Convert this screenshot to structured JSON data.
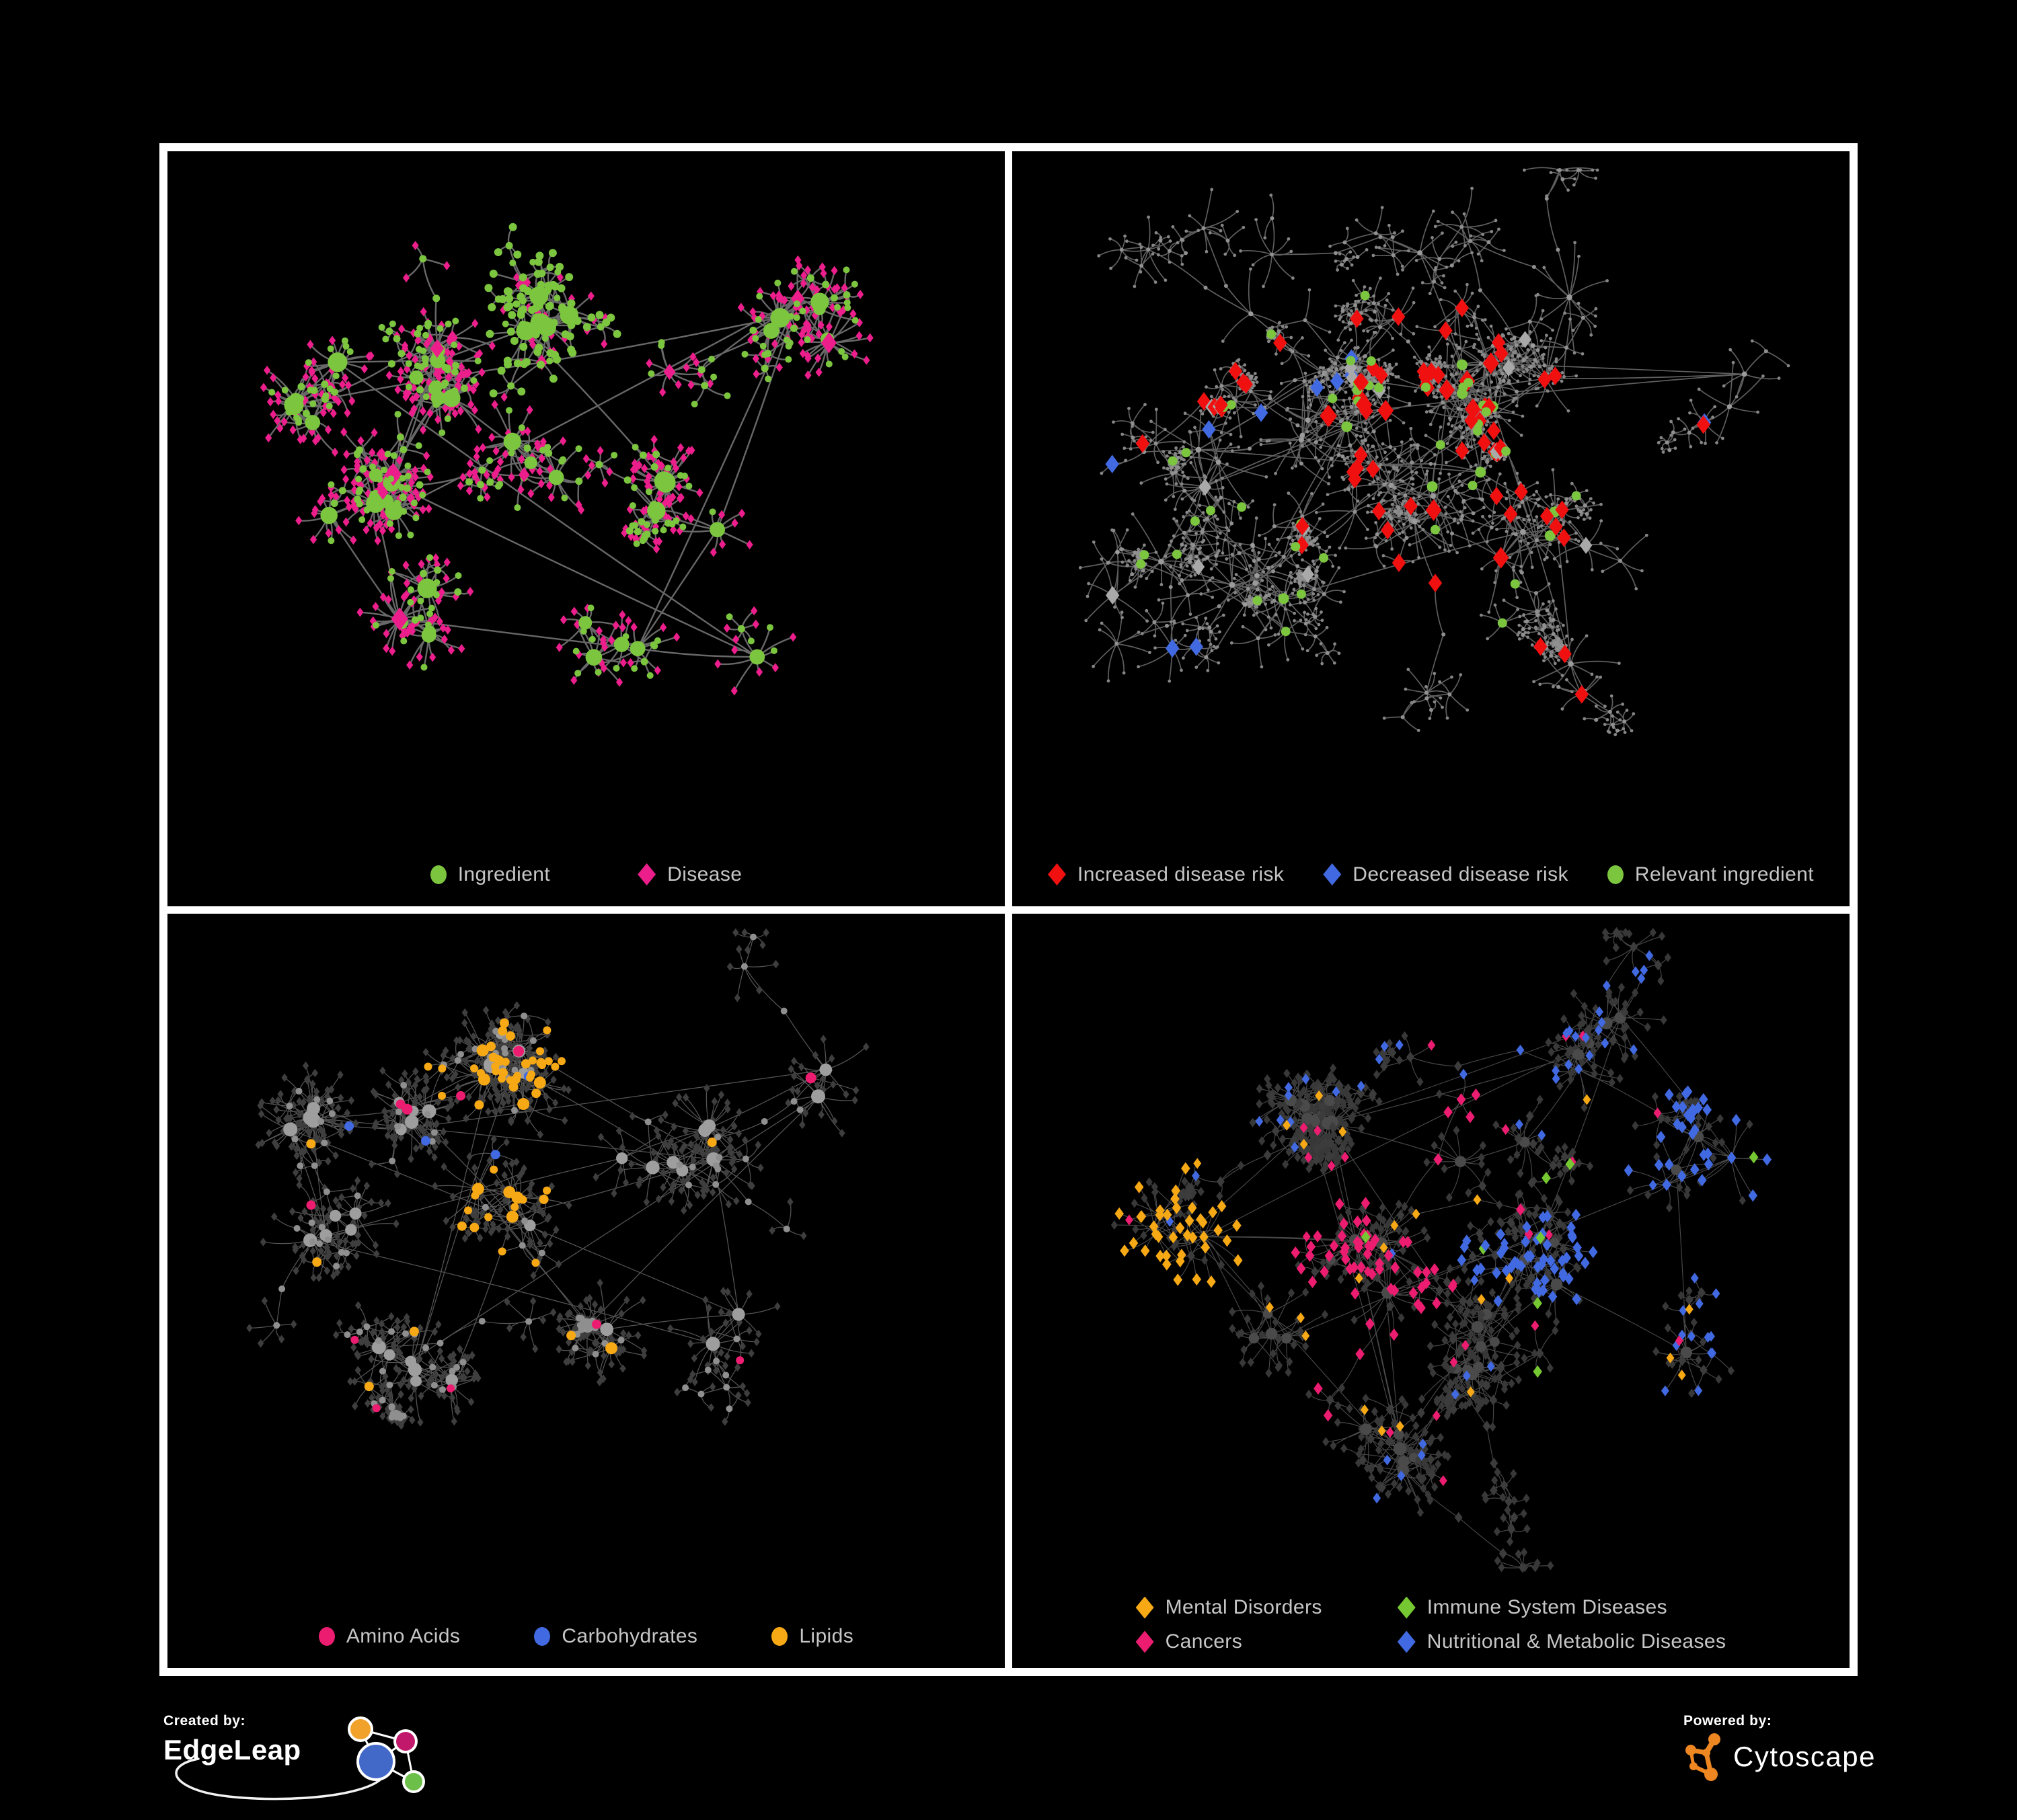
{
  "frame": {
    "border_color": "#ffffff",
    "background": "#000000"
  },
  "branding": {
    "created": {
      "label": "Created by:",
      "name": "EdgeLeap"
    },
    "powered": {
      "label": "Powered by:",
      "name": "Cytoscape",
      "logo_color": "#ee8722"
    }
  },
  "palette": {
    "green": "#7cc63f",
    "magenta": "#ec1e8c",
    "red": "#f01010",
    "blue": "#4169e1",
    "gray_diamond": "#a9a9a9",
    "amber": "#f7a915",
    "pink": "#ec1d70",
    "leaf_gray": "#8a8a8a",
    "dark_diamond": "#3c3c3c"
  },
  "panels": [
    {
      "name": "ingredient-disease-network",
      "legend": {
        "items": [
          {
            "shape": "circle",
            "color": "#7cc63f",
            "label": "Ingredient"
          },
          {
            "shape": "diamond",
            "color": "#ec1e8c",
            "label": "Disease"
          }
        ]
      },
      "network": {
        "seed": 7,
        "hubs": 55,
        "leafMin": 5,
        "leafMax": 18,
        "dMin": 22,
        "dMax": 62,
        "subP": 0.08,
        "chainP": 0.1,
        "spread": 62,
        "bottom_margin": 130,
        "centers": [
          [
            0.3,
            0.3
          ],
          [
            0.44,
            0.24
          ],
          [
            0.24,
            0.48
          ],
          [
            0.42,
            0.46
          ],
          [
            0.58,
            0.28
          ],
          [
            0.64,
            0.5
          ],
          [
            0.3,
            0.7
          ],
          [
            0.52,
            0.72
          ],
          [
            0.76,
            0.22
          ],
          [
            0.7,
            0.68
          ],
          [
            0.14,
            0.35
          ]
        ],
        "weights": [
          2.4,
          2.0,
          1.6,
          2.0,
          1.5,
          1.5,
          1.3,
          1.3,
          1.3,
          1.0,
          0.9
        ],
        "edge": {
          "color": "#6e6e6e",
          "width": 2.4,
          "opacity": 0.95
        },
        "base": {
          "hub": {
            "shape": "circle",
            "color": "#7cc63f",
            "rMin": 6,
            "rMax": 15
          },
          "branch": {
            "shape": "circle",
            "color": "#7cc63f",
            "r": 5.5
          },
          "leaf": {
            "shape": "diamond",
            "color": "#ec1e8c",
            "r": 6
          }
        },
        "recolor": [
          {
            "role": "leaf",
            "clusters": [
              1
            ],
            "prob": 0.7,
            "style": {
              "shape": "circle",
              "color": "#7cc63f",
              "r": 6
            }
          },
          {
            "role": "hub",
            "prob": 0.2,
            "style": {
              "shape": "diamond",
              "color": "#ec1e8c"
            }
          },
          {
            "role": "leaf",
            "prob": 0.24,
            "style": {
              "shape": "circle",
              "color": "#7cc63f",
              "r": 5
            }
          }
        ]
      }
    },
    {
      "name": "disease-risk-network",
      "legend": {
        "items": [
          {
            "shape": "diamond",
            "color": "#f01010",
            "label": "Increased disease risk"
          },
          {
            "shape": "diamond",
            "color": "#4169e1",
            "label": "Decreased disease risk"
          },
          {
            "shape": "circle",
            "color": "#7cc63f",
            "label": "Relevant ingredient"
          }
        ]
      },
      "network": {
        "seed": 13,
        "hubs": 50,
        "leafMin": 3,
        "leafMax": 10,
        "dMin": 32,
        "dMax": 85,
        "subP": 0.2,
        "chainP": 0.38,
        "spread": 66,
        "bottom_margin": 130,
        "centers": [
          [
            0.25,
            0.44
          ],
          [
            0.38,
            0.38
          ],
          [
            0.47,
            0.52
          ],
          [
            0.55,
            0.33
          ],
          [
            0.62,
            0.55
          ],
          [
            0.3,
            0.62
          ],
          [
            0.52,
            0.15
          ],
          [
            0.7,
            0.25
          ],
          [
            0.2,
            0.2
          ],
          [
            0.88,
            0.35
          ],
          [
            0.68,
            0.75
          ],
          [
            0.15,
            0.6
          ]
        ],
        "weights": [
          1.6,
          2.2,
          1.8,
          1.8,
          1.6,
          1.2,
          1.0,
          1.0,
          1.0,
          0.7,
          0.9,
          0.8
        ],
        "edge": {
          "color": "#6f6f6f",
          "width": 1.7,
          "opacity": 0.85
        },
        "base": {
          "hub": {
            "shape": "circle",
            "color": "#9b9b9b",
            "rMin": 3,
            "rMax": 5
          },
          "branch": {
            "shape": "circle",
            "color": "#909090",
            "r": 3
          },
          "leaf": {
            "shape": "circle",
            "color": "#868686",
            "r": 2.4
          }
        },
        "recolor": [
          {
            "role": "hub",
            "clusters": [
              0
            ],
            "prob": 0.45,
            "style": {
              "shape": "diamond",
              "color": "#4169e1",
              "r": 13
            }
          },
          {
            "role": "branch",
            "clusters": [
              0,
              9
            ],
            "prob": 0.22,
            "style": {
              "shape": "diamond",
              "color": "#4169e1",
              "r": 12
            }
          },
          {
            "role": "hub",
            "clusters": [
              1,
              2,
              3,
              4
            ],
            "prob": 0.4,
            "style": {
              "shape": "diamond",
              "color": "#f01010",
              "r": 14
            }
          },
          {
            "role": "branch",
            "clusters": [
              1,
              2,
              3,
              4,
              9,
              10
            ],
            "prob": 0.14,
            "style": {
              "shape": "diamond",
              "color": "#f01010",
              "r": 12
            }
          },
          {
            "role": "hub",
            "clusters": [
              0,
              1,
              2,
              3,
              4,
              5
            ],
            "prob": 0.45,
            "style": {
              "shape": "circle",
              "color": "#7cc63f",
              "r": 8
            }
          },
          {
            "role": "branch",
            "clusters": [
              1,
              2,
              3,
              4,
              5
            ],
            "prob": 0.1,
            "style": {
              "shape": "circle",
              "color": "#7cc63f",
              "r": 7
            }
          },
          {
            "role": "hub",
            "prob": 0.07,
            "style": {
              "shape": "diamond",
              "color": "#a9a9a9",
              "r": 12
            }
          },
          {
            "role": "branch",
            "prob": 0.03,
            "style": {
              "shape": "diamond",
              "color": "#a9a9a9",
              "r": 11
            }
          }
        ]
      }
    },
    {
      "name": "nutrient-class-network",
      "legend": {
        "items": [
          {
            "shape": "circle",
            "color": "#ec1d70",
            "label": "Amino Acids"
          },
          {
            "shape": "circle",
            "color": "#4169e1",
            "label": "Carbohydrates"
          },
          {
            "shape": "circle",
            "color": "#f7a915",
            "label": "Lipids"
          }
        ]
      },
      "network": {
        "seed": 23,
        "hubs": 52,
        "leafMin": 4,
        "leafMax": 14,
        "dMin": 26,
        "dMax": 70,
        "subP": 0.12,
        "chainP": 0.18,
        "spread": 62,
        "bottom_margin": 135,
        "centers": [
          [
            0.3,
            0.3
          ],
          [
            0.4,
            0.2
          ],
          [
            0.2,
            0.45
          ],
          [
            0.42,
            0.42
          ],
          [
            0.6,
            0.33
          ],
          [
            0.5,
            0.62
          ],
          [
            0.28,
            0.68
          ],
          [
            0.68,
            0.6
          ],
          [
            0.78,
            0.25
          ],
          [
            0.15,
            0.3
          ]
        ],
        "weights": [
          2.2,
          1.8,
          1.5,
          2.0,
          1.4,
          1.4,
          1.2,
          1.2,
          0.9,
          1.0
        ],
        "edge": {
          "color": "#9a9a9a",
          "width": 1.25,
          "opacity": 0.55
        },
        "base": {
          "hub": {
            "shape": "circle",
            "color": "#9e9e9e",
            "rMin": 6,
            "rMax": 12
          },
          "branch": {
            "shape": "circle",
            "color": "#8f8f8f",
            "r": 5
          },
          "leaf": {
            "shape": "diamond",
            "color": "#3e3e3e",
            "r": 5.5
          }
        },
        "recolor": [
          {
            "role": "hub",
            "clusters": [
              1,
              3
            ],
            "prob": 0.5,
            "style": {
              "shape": "circle",
              "color": "#f7a915",
              "r": 9
            }
          },
          {
            "role": "branch",
            "clusters": [
              1,
              3
            ],
            "prob": 0.4,
            "style": {
              "shape": "circle",
              "color": "#f7a915",
              "r": 7
            }
          },
          {
            "role": "leaf",
            "clusters": [
              1,
              3
            ],
            "prob": 0.1,
            "style": {
              "shape": "circle",
              "color": "#f7a915",
              "r": 6
            }
          },
          {
            "role": "branch",
            "clusters": [
              0,
              3
            ],
            "prob": 0.15,
            "style": {
              "shape": "circle",
              "color": "#4169e1",
              "r": 7
            }
          },
          {
            "role": "hub",
            "clusters": [
              5
            ],
            "prob": 0.3,
            "style": {
              "shape": "circle",
              "color": "#f7a915",
              "r": 9
            }
          },
          {
            "role": "hub",
            "prob": 0.09,
            "style": {
              "shape": "circle",
              "color": "#ec1d70",
              "r": 8
            }
          },
          {
            "role": "branch",
            "prob": 0.06,
            "style": {
              "shape": "circle",
              "color": "#ec1d70",
              "r": 7
            }
          },
          {
            "role": "branch",
            "prob": 0.05,
            "style": {
              "shape": "circle",
              "color": "#f7a915",
              "r": 7
            }
          },
          {
            "role": "leaf",
            "clusters": [
              6,
              7
            ],
            "prob": 0.03,
            "style": {
              "shape": "circle",
              "color": "#ec1d70",
              "r": 6
            }
          },
          {
            "role": "branch",
            "clusters": [
              8
            ],
            "prob": 0.06,
            "style": {
              "shape": "circle",
              "color": "#4169e1",
              "r": 7
            }
          }
        ]
      }
    },
    {
      "name": "disease-category-network",
      "legend": {
        "items": [
          {
            "shape": "diamond",
            "color": "#f7a915",
            "label": "Mental Disorders"
          },
          {
            "shape": "diamond",
            "color": "#76c832",
            "label": "Immune System Diseases"
          },
          {
            "shape": "diamond",
            "color": "#ec1d70",
            "label": "Cancers"
          },
          {
            "shape": "diamond",
            "color": "#4169e1",
            "label": "Nutritional & Metabolic Diseases"
          }
        ]
      },
      "network": {
        "seed": 31,
        "hubs": 56,
        "leafMin": 4,
        "leafMax": 13,
        "dMin": 26,
        "dMax": 68,
        "subP": 0.12,
        "chainP": 0.16,
        "spread": 62,
        "bottom_margin": 150,
        "centers": [
          [
            0.17,
            0.45
          ],
          [
            0.35,
            0.28
          ],
          [
            0.44,
            0.5
          ],
          [
            0.58,
            0.38
          ],
          [
            0.3,
            0.64
          ],
          [
            0.55,
            0.66
          ],
          [
            0.63,
            0.52
          ],
          [
            0.7,
            0.2
          ],
          [
            0.83,
            0.38
          ],
          [
            0.45,
            0.82
          ],
          [
            0.85,
            0.68
          ]
        ],
        "weights": [
          2.0,
          1.8,
          2.0,
          1.6,
          1.4,
          1.4,
          1.5,
          1.2,
          1.3,
          0.9,
          0.9
        ],
        "edge": {
          "color": "#909090",
          "width": 1.15,
          "opacity": 0.5
        },
        "base": {
          "hub": {
            "shape": "circle",
            "color": "#4a4a4a",
            "rMin": 6,
            "rMax": 10
          },
          "branch": {
            "shape": "diamond",
            "color": "#3c3c3c",
            "r": 7
          },
          "leaf": {
            "shape": "diamond",
            "color": "#383838",
            "r": 6
          }
        },
        "recolor": [
          {
            "role": "any",
            "clusters": [
              0
            ],
            "prob": 0.62,
            "style": {
              "shape": "diamond",
              "color": "#f7a915",
              "r": 8
            }
          },
          {
            "role": "any",
            "clusters": [
              2
            ],
            "prob": 0.4,
            "style": {
              "shape": "diamond",
              "color": "#ec1d70",
              "r": 8
            }
          },
          {
            "role": "any",
            "clusters": [
              6,
              8
            ],
            "prob": 0.42,
            "style": {
              "shape": "diamond",
              "color": "#4169e1",
              "r": 8
            }
          },
          {
            "role": "any",
            "clusters": [
              7,
              10
            ],
            "prob": 0.14,
            "style": {
              "shape": "diamond",
              "color": "#4169e1",
              "r": 7
            }
          },
          {
            "role": "any",
            "prob": 0.04,
            "style": {
              "shape": "diamond",
              "color": "#4169e1",
              "r": 7
            }
          },
          {
            "role": "any",
            "prob": 0.028,
            "style": {
              "shape": "diamond",
              "color": "#f7a915",
              "r": 7
            }
          },
          {
            "role": "any",
            "prob": 0.022,
            "style": {
              "shape": "diamond",
              "color": "#ec1d70",
              "r": 7
            }
          },
          {
            "role": "any",
            "prob": 0.012,
            "style": {
              "shape": "diamond",
              "color": "#76c832",
              "r": 8
            }
          }
        ]
      }
    }
  ]
}
